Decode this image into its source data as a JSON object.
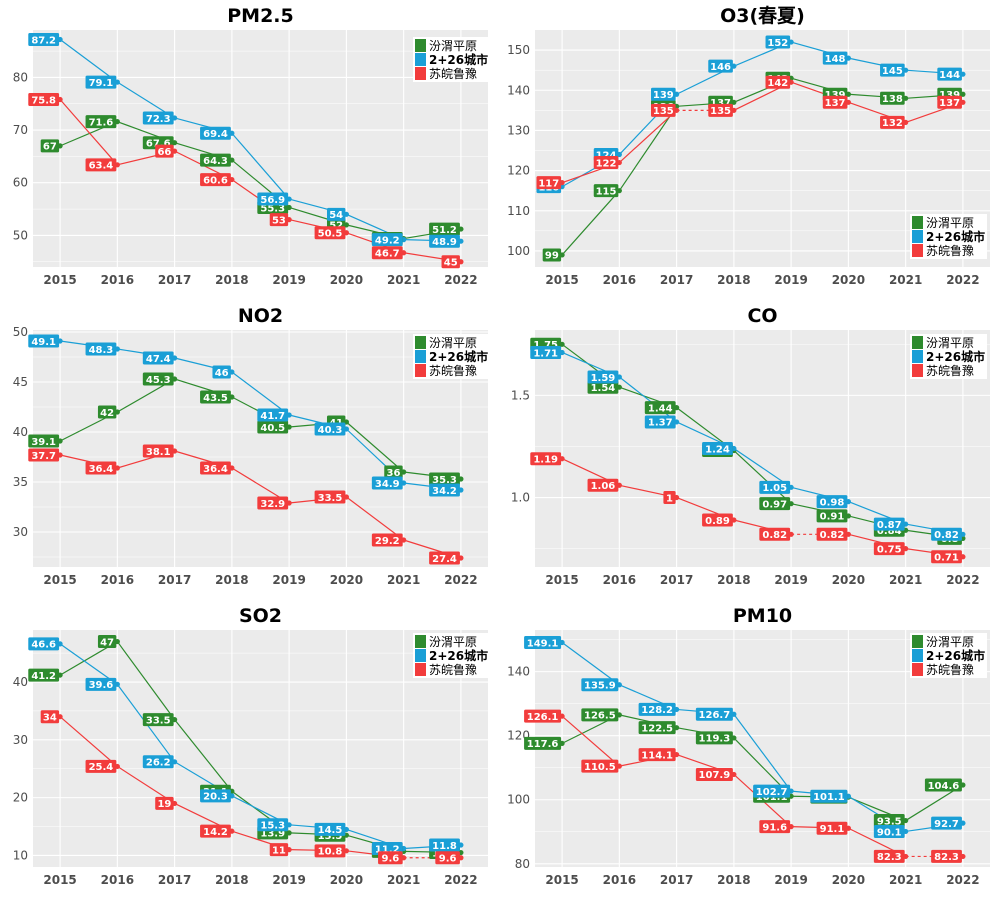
{
  "colors": {
    "fenwei": "#2e8b2e",
    "c226": "#1a9fd6",
    "sujiang": "#f23c3c",
    "panel": "#ebebeb",
    "grid": "#ffffff",
    "axis_text": "#4d4d4d"
  },
  "chart_data": [
    {
      "type": "line",
      "title": "PM2.5",
      "x": [
        "2015",
        "2016",
        "2017",
        "2018",
        "2019",
        "2020",
        "2021",
        "2022"
      ],
      "ylim": [
        44,
        89
      ],
      "yticks": [
        50,
        60,
        70,
        80
      ],
      "ytick_labels": [
        "50",
        "60",
        "70",
        "80"
      ],
      "legend": "top-right",
      "legend_entries": [
        "汾渭平原",
        "2+26城市",
        "苏皖鲁豫"
      ],
      "series": [
        {
          "name": "汾渭平原",
          "values": [
            67,
            71.6,
            67.6,
            64.3,
            55.3,
            52,
            49.4,
            51.2
          ],
          "labels": [
            "67",
            "71.6",
            "67.6",
            "64.3",
            "55.3",
            "52",
            "49.4",
            "51.2"
          ]
        },
        {
          "name": "2+26城市",
          "values": [
            87.2,
            79.1,
            72.3,
            69.4,
            56.9,
            54,
            49.2,
            48.9
          ],
          "labels": [
            "87.2",
            "79.1",
            "72.3",
            "69.4",
            "56.9",
            "54",
            "49.2",
            "48.9"
          ]
        },
        {
          "name": "苏皖鲁豫",
          "values": [
            75.8,
            63.4,
            66,
            60.6,
            53,
            50.5,
            46.7,
            45
          ],
          "labels": [
            "75.8",
            "63.4",
            "66",
            "60.6",
            "53",
            "50.5",
            "46.7",
            "45"
          ]
        }
      ]
    },
    {
      "type": "line",
      "title": "O3(春夏)",
      "x": [
        "2015",
        "2016",
        "2017",
        "2018",
        "2019",
        "2020",
        "2021",
        "2022"
      ],
      "ylim": [
        96,
        155
      ],
      "yticks": [
        100,
        110,
        120,
        130,
        140,
        150
      ],
      "ytick_labels": [
        "100",
        "110",
        "120",
        "130",
        "140",
        "150"
      ],
      "legend": "bottom-right",
      "legend_entries": [
        "汾渭平原",
        "2+26城市",
        "苏皖鲁豫"
      ],
      "series": [
        {
          "name": "汾渭平原",
          "values": [
            99,
            115,
            136,
            137,
            143,
            139,
            138,
            139
          ],
          "labels": [
            "99",
            "115",
            "136",
            "137",
            "143",
            "139",
            "138",
            "139"
          ]
        },
        {
          "name": "2+26城市",
          "values": [
            116,
            124,
            139,
            146,
            152,
            148,
            145,
            144
          ],
          "labels": [
            "116",
            "124",
            "139",
            "146",
            "152",
            "148",
            "145",
            "144"
          ]
        },
        {
          "name": "苏皖鲁豫",
          "values": [
            117,
            122,
            135,
            135,
            142,
            137,
            132,
            137
          ],
          "labels": [
            "117",
            "122",
            "135",
            "135",
            "142",
            "137",
            "132",
            "137"
          ]
        }
      ]
    },
    {
      "type": "line",
      "title": "NO2",
      "x": [
        "2015",
        "2016",
        "2017",
        "2018",
        "2019",
        "2020",
        "2021",
        "2022"
      ],
      "ylim": [
        26.5,
        50.2
      ],
      "yticks": [
        30,
        35,
        40,
        45,
        50
      ],
      "ytick_labels": [
        "30",
        "35",
        "40",
        "45",
        "50"
      ],
      "legend": "top-right",
      "legend_entries": [
        "汾渭平原",
        "2+26城市",
        "苏皖鲁豫"
      ],
      "series": [
        {
          "name": "汾渭平原",
          "values": [
            39.1,
            42,
            45.3,
            43.5,
            40.5,
            41,
            36,
            35.3
          ],
          "labels": [
            "39.1",
            "42",
            "45.3",
            "43.5",
            "40.5",
            "41",
            "36",
            "35.3"
          ]
        },
        {
          "name": "2+26城市",
          "values": [
            49.1,
            48.3,
            47.4,
            46,
            41.7,
            40.3,
            34.9,
            34.2
          ],
          "labels": [
            "49.1",
            "48.3",
            "47.4",
            "46",
            "41.7",
            "40.3",
            "34.9",
            "34.2"
          ]
        },
        {
          "name": "苏皖鲁豫",
          "values": [
            37.7,
            36.4,
            38.1,
            36.4,
            32.9,
            33.5,
            29.2,
            27.4
          ],
          "labels": [
            "37.7",
            "36.4",
            "38.1",
            "36.4",
            "32.9",
            "33.5",
            "29.2",
            "27.4"
          ]
        }
      ]
    },
    {
      "type": "line",
      "title": "CO",
      "x": [
        "2015",
        "2016",
        "2017",
        "2018",
        "2019",
        "2020",
        "2021",
        "2022"
      ],
      "ylim": [
        0.66,
        1.82
      ],
      "yticks": [
        1.0,
        1.5
      ],
      "ytick_labels": [
        "1.0",
        "1.5"
      ],
      "legend": "top-right",
      "legend_entries": [
        "汾渭平原",
        "2+26城市",
        "苏皖鲁豫"
      ],
      "series": [
        {
          "name": "汾渭平原",
          "values": [
            1.75,
            1.54,
            1.44,
            1.23,
            0.97,
            0.91,
            0.84,
            0.8
          ],
          "labels": [
            "1.75",
            "1.54",
            "1.44",
            "1.23",
            "0.97",
            "0.91",
            "0.84",
            "0.8"
          ]
        },
        {
          "name": "2+26城市",
          "values": [
            1.71,
            1.59,
            1.37,
            1.24,
            1.05,
            0.98,
            0.87,
            0.82
          ],
          "labels": [
            "1.71",
            "1.59",
            "1.37",
            "1.24",
            "1.05",
            "0.98",
            "0.87",
            "0.82"
          ]
        },
        {
          "name": "苏皖鲁豫",
          "values": [
            1.19,
            1.06,
            1,
            0.89,
            0.82,
            0.82,
            0.75,
            0.71
          ],
          "labels": [
            "1.19",
            "1.06",
            "1",
            "0.89",
            "0.82",
            "0.82",
            "0.75",
            "0.71"
          ]
        }
      ]
    },
    {
      "type": "line",
      "title": "SO2",
      "x": [
        "2015",
        "2016",
        "2017",
        "2018",
        "2019",
        "2020",
        "2021",
        "2022"
      ],
      "ylim": [
        8,
        49
      ],
      "yticks": [
        10,
        20,
        30,
        40
      ],
      "ytick_labels": [
        "10",
        "20",
        "30",
        "40"
      ],
      "legend": "top-right",
      "legend_entries": [
        "汾渭平原",
        "2+26城市",
        "苏皖鲁豫"
      ],
      "series": [
        {
          "name": "汾渭平原",
          "values": [
            41.2,
            47,
            33.5,
            21.1,
            13.9,
            13.5,
            10.7,
            10.5
          ],
          "labels": [
            "41.2",
            "47",
            "33.5",
            "21.1",
            "13.9",
            "13.5",
            "10.7",
            "10.5"
          ]
        },
        {
          "name": "2+26城市",
          "values": [
            46.6,
            39.6,
            26.2,
            20.3,
            15.3,
            14.5,
            11.2,
            11.8
          ],
          "labels": [
            "46.6",
            "39.6",
            "26.2",
            "20.3",
            "15.3",
            "14.5",
            "11.2",
            "11.8"
          ]
        },
        {
          "name": "苏皖鲁豫",
          "values": [
            34,
            25.4,
            19,
            14.2,
            11,
            10.8,
            9.6,
            9.6
          ],
          "labels": [
            "34",
            "25.4",
            "19",
            "14.2",
            "11",
            "10.8",
            "9.6",
            "9.6"
          ]
        }
      ]
    },
    {
      "type": "line",
      "title": "PM10",
      "x": [
        "2015",
        "2016",
        "2017",
        "2018",
        "2019",
        "2020",
        "2021",
        "2022"
      ],
      "ylim": [
        79,
        153
      ],
      "yticks": [
        80,
        100,
        120,
        140
      ],
      "ytick_labels": [
        "80",
        "100",
        "120",
        "140"
      ],
      "legend": "top-right",
      "legend_entries": [
        "汾渭平原",
        "2+26城市",
        "苏皖鲁豫"
      ],
      "series": [
        {
          "name": "汾渭平原",
          "values": [
            117.6,
            126.5,
            122.5,
            119.3,
            101.1,
            100.8,
            93.5,
            104.6
          ],
          "labels": [
            "117.6",
            "126.5",
            "122.5",
            "119.3",
            "101.1",
            "100.8",
            "93.5",
            "104.6"
          ]
        },
        {
          "name": "2+26城市",
          "values": [
            149.1,
            135.9,
            128.2,
            126.7,
            102.7,
            101.1,
            90.1,
            92.7
          ],
          "labels": [
            "149.1",
            "135.9",
            "128.2",
            "126.7",
            "102.7",
            "101.1",
            "90.1",
            "92.7"
          ]
        },
        {
          "name": "苏皖鲁豫",
          "values": [
            126.1,
            110.5,
            114.1,
            107.9,
            91.6,
            91.1,
            82.3,
            82.3
          ],
          "labels": [
            "126.1",
            "110.5",
            "114.1",
            "107.9",
            "91.6",
            "91.1",
            "82.3",
            "82.3"
          ]
        }
      ]
    }
  ]
}
